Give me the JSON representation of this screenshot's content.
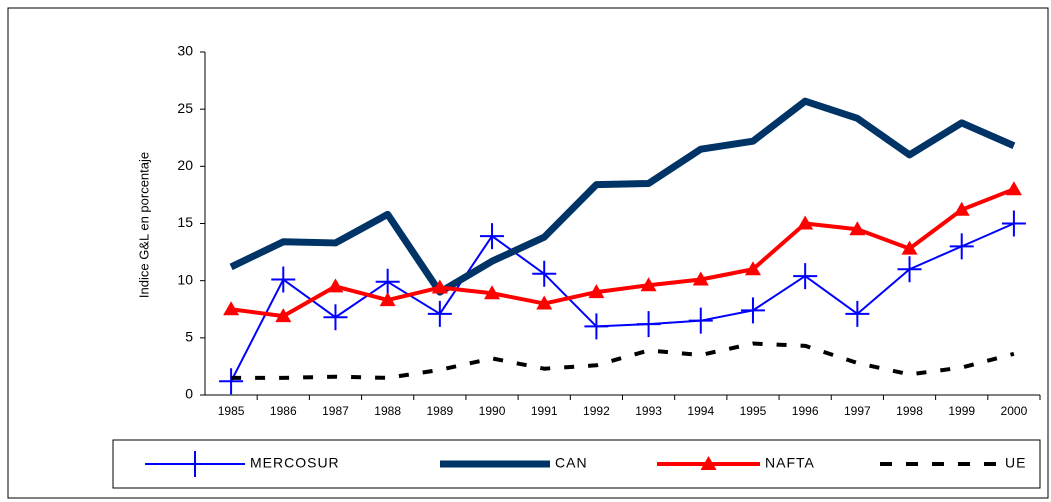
{
  "chart_data": {
    "type": "line",
    "y_label": "Indice G&L en porcentaje",
    "categories": [
      "1985",
      "1986",
      "1987",
      "1988",
      "1989",
      "1990",
      "1991",
      "1992",
      "1993",
      "1994",
      "1995",
      "1996",
      "1997",
      "1998",
      "1999",
      "2000"
    ],
    "series": [
      {
        "name": "MERCOSUR",
        "color": "#0000ff",
        "marker": "plus",
        "line_style": "solid",
        "values": [
          1.2,
          10.1,
          6.8,
          9.9,
          7.1,
          13.9,
          10.6,
          6.0,
          6.2,
          6.5,
          7.4,
          10.4,
          7.1,
          11.0,
          13.0,
          15.0
        ]
      },
      {
        "name": "CAN",
        "color": "#003366",
        "marker": "none",
        "line_style": "solid",
        "values": [
          11.2,
          13.4,
          13.3,
          15.8,
          9.0,
          11.7,
          13.8,
          18.4,
          18.5,
          21.5,
          22.2,
          25.7,
          24.2,
          21.0,
          23.8,
          21.8
        ]
      },
      {
        "name": "NAFTA",
        "color": "#ff0000",
        "marker": "triangle",
        "line_style": "solid",
        "values": [
          7.5,
          6.9,
          9.5,
          8.3,
          9.4,
          8.9,
          8.0,
          9.0,
          9.6,
          10.1,
          11.0,
          15.0,
          14.5,
          12.8,
          16.2,
          18.0
        ]
      },
      {
        "name": "UE",
        "color": "#000000",
        "marker": "none",
        "line_style": "dashed",
        "values": [
          1.5,
          1.5,
          1.6,
          1.5,
          2.2,
          3.2,
          2.3,
          2.6,
          3.9,
          3.5,
          4.5,
          4.3,
          2.8,
          1.8,
          2.4,
          3.6
        ]
      }
    ],
    "ylim": [
      0,
      30
    ],
    "yticks": [
      0,
      5,
      10,
      15,
      20,
      25,
      30
    ],
    "grid": false,
    "legend": "bottom"
  }
}
